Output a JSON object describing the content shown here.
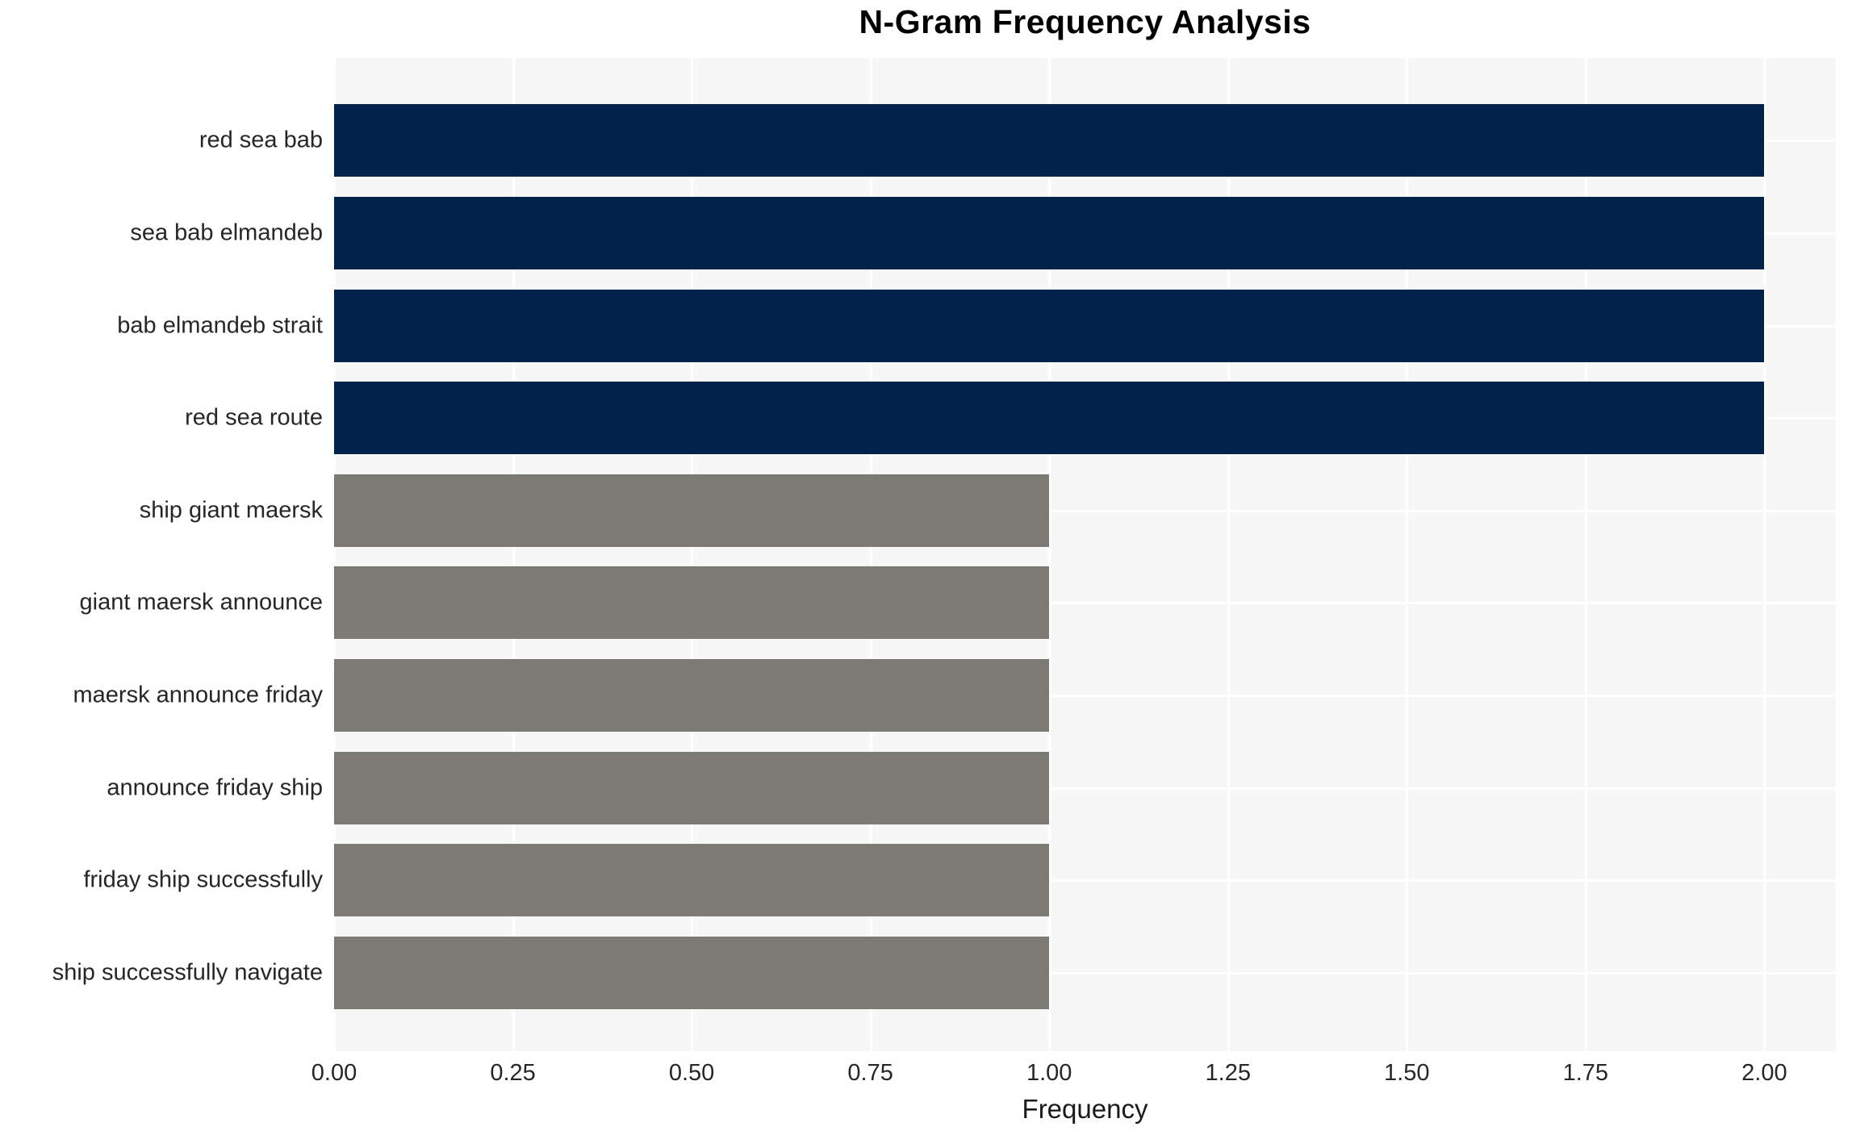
{
  "chart_data": {
    "type": "bar",
    "orientation": "horizontal",
    "title": "N-Gram Frequency Analysis",
    "xlabel": "Frequency",
    "ylabel": "",
    "categories": [
      "red sea bab",
      "sea bab elmandeb",
      "bab elmandeb strait",
      "red sea route",
      "ship giant maersk",
      "giant maersk announce",
      "maersk announce friday",
      "announce friday ship",
      "friday ship successfully",
      "ship successfully navigate"
    ],
    "values": [
      2,
      2,
      2,
      2,
      1,
      1,
      1,
      1,
      1,
      1
    ],
    "xlim": [
      0,
      2.1
    ],
    "xticks": [
      0,
      0.25,
      0.5,
      0.75,
      1,
      1.25,
      1.5,
      1.75,
      2
    ],
    "xtick_labels": [
      "0.00",
      "0.25",
      "0.50",
      "0.75",
      "1.00",
      "1.25",
      "1.50",
      "1.75",
      "2.00"
    ],
    "grid": true,
    "legend": false,
    "bar_colors": [
      "#022349",
      "#022349",
      "#022349",
      "#022349",
      "#7b7a75",
      "#7b7a75",
      "#7b7a75",
      "#7b7a75",
      "#7b7a75",
      "#7b7a75"
    ],
    "colors": {
      "highlight_bar": "#022349",
      "default_bar": "#7b7a75",
      "plot_background": "#f7f7f7",
      "gridline": "#ffffff",
      "tick_text": "#262626",
      "title_text": "#000000"
    }
  }
}
